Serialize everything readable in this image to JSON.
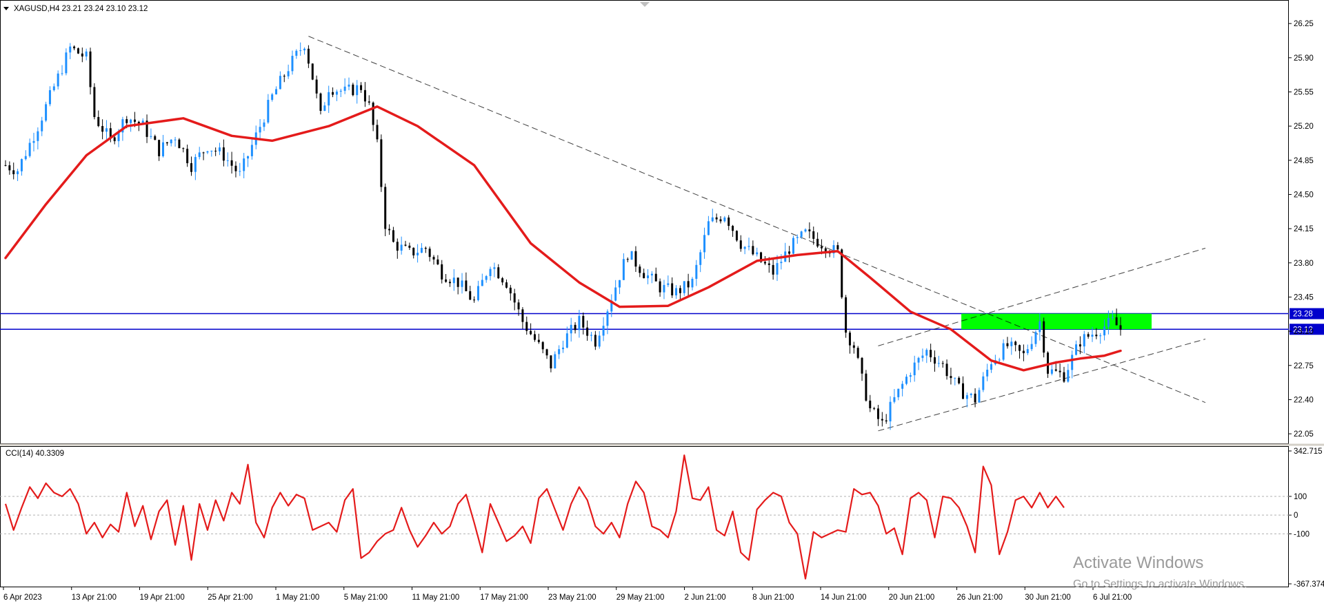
{
  "header": {
    "symbol_line": "XAGUSD,H4  23.21 23.24 23.10 23.12"
  },
  "indicator": {
    "label": "CCI(14) 40.3309"
  },
  "watermark": {
    "line1": "Activate Windows",
    "line2": "Go to Settings to activate Windows."
  },
  "colors": {
    "background": "#ffffff",
    "bull_candle": "#1e90ff",
    "bear_candle": "#000000",
    "moving_average": "#e41b1b",
    "cci_line": "#e41b1b",
    "level_lines": "#0000cc",
    "level_badge": "#0000cc",
    "zone": "#00ff00",
    "trendlines": "#000000",
    "axis_text": "#000000",
    "watermark": "#9a9a9a"
  },
  "chart_data": [
    {
      "type": "candlestick",
      "symbol": "XAGUSD",
      "timeframe": "H4",
      "ohlc_last": {
        "open": 23.21,
        "high": 23.24,
        "low": 23.1,
        "close": 23.12
      },
      "ylim": [
        21.98,
        26.35
      ],
      "y_ticks": [
        26.25,
        25.9,
        25.55,
        25.2,
        24.85,
        24.5,
        24.15,
        23.8,
        23.45,
        23.1,
        22.75,
        22.4,
        22.05
      ],
      "x_tick_labels": [
        "6 Apr 2023",
        "13 Apr 21:00",
        "19 Apr 21:00",
        "25 Apr 21:00",
        "1 May 21:00",
        "5 May 21:00",
        "11 May 21:00",
        "17 May 21:00",
        "23 May 21:00",
        "29 May 21:00",
        "2 Jun 21:00",
        "8 Jun 21:00",
        "14 Jun 21:00",
        "20 Jun 21:00",
        "26 Jun 21:00",
        "30 Jun 21:00",
        "6 Jul 21:00"
      ],
      "price_path": [
        [
          0,
          24.8
        ],
        [
          3,
          24.75
        ],
        [
          8,
          25.2
        ],
        [
          12,
          25.6
        ],
        [
          16,
          26.0
        ],
        [
          20,
          25.9
        ],
        [
          22,
          25.3
        ],
        [
          26,
          25.05
        ],
        [
          30,
          25.3
        ],
        [
          34,
          25.2
        ],
        [
          38,
          24.95
        ],
        [
          42,
          25.1
        ],
        [
          46,
          24.8
        ],
        [
          50,
          25.0
        ],
        [
          54,
          24.9
        ],
        [
          58,
          24.7
        ],
        [
          62,
          25.1
        ],
        [
          66,
          25.5
        ],
        [
          70,
          25.8
        ],
        [
          74,
          26.05
        ],
        [
          76,
          25.7
        ],
        [
          78,
          25.3
        ],
        [
          80,
          25.6
        ],
        [
          84,
          25.55
        ],
        [
          88,
          25.6
        ],
        [
          90,
          25.4
        ],
        [
          92,
          25.0
        ],
        [
          94,
          24.2
        ],
        [
          96,
          24.0
        ],
        [
          100,
          23.9
        ],
        [
          104,
          23.95
        ],
        [
          108,
          23.7
        ],
        [
          112,
          23.6
        ],
        [
          116,
          23.4
        ],
        [
          120,
          23.8
        ],
        [
          124,
          23.6
        ],
        [
          128,
          23.2
        ],
        [
          132,
          22.95
        ],
        [
          135,
          22.75
        ],
        [
          138,
          23.0
        ],
        [
          142,
          23.2
        ],
        [
          146,
          23.0
        ],
        [
          150,
          23.45
        ],
        [
          154,
          23.9
        ],
        [
          158,
          23.7
        ],
        [
          162,
          23.55
        ],
        [
          166,
          23.5
        ],
        [
          170,
          23.6
        ],
        [
          174,
          24.2
        ],
        [
          178,
          24.3
        ],
        [
          182,
          24.0
        ],
        [
          186,
          23.85
        ],
        [
          190,
          23.7
        ],
        [
          194,
          23.95
        ],
        [
          198,
          24.1
        ],
        [
          202,
          24.0
        ],
        [
          206,
          23.9
        ],
        [
          208,
          23.1
        ],
        [
          210,
          22.95
        ],
        [
          212,
          22.6
        ],
        [
          214,
          22.3
        ],
        [
          217,
          22.15
        ],
        [
          220,
          22.4
        ],
        [
          224,
          22.7
        ],
        [
          228,
          22.9
        ],
        [
          232,
          22.75
        ],
        [
          236,
          22.5
        ],
        [
          240,
          22.4
        ],
        [
          244,
          22.8
        ],
        [
          248,
          22.95
        ],
        [
          252,
          22.85
        ],
        [
          256,
          23.2
        ],
        [
          258,
          22.7
        ],
        [
          262,
          22.65
        ],
        [
          266,
          23.0
        ],
        [
          270,
          23.1
        ],
        [
          274,
          23.2
        ],
        [
          276,
          23.12
        ]
      ],
      "series": [
        {
          "style": "moving-average",
          "points": [
            [
              0,
              23.85
            ],
            [
              10,
              24.4
            ],
            [
              20,
              24.9
            ],
            [
              30,
              25.2
            ],
            [
              44,
              25.28
            ],
            [
              56,
              25.1
            ],
            [
              66,
              25.05
            ],
            [
              80,
              25.2
            ],
            [
              92,
              25.4
            ],
            [
              102,
              25.2
            ],
            [
              116,
              24.8
            ],
            [
              130,
              24.0
            ],
            [
              142,
              23.6
            ],
            [
              152,
              23.35
            ],
            [
              164,
              23.36
            ],
            [
              174,
              23.55
            ],
            [
              186,
              23.82
            ],
            [
              196,
              23.88
            ],
            [
              206,
              23.92
            ],
            [
              214,
              23.65
            ],
            [
              224,
              23.3
            ],
            [
              234,
              23.12
            ],
            [
              244,
              22.8
            ],
            [
              252,
              22.7
            ],
            [
              260,
              22.78
            ],
            [
              266,
              22.82
            ],
            [
              272,
              22.85
            ],
            [
              276,
              22.9
            ]
          ]
        }
      ],
      "horizontal_levels": [
        23.28,
        23.12
      ],
      "zone": {
        "from_bar": 240,
        "to_bar": 276,
        "low": 23.12,
        "high": 23.28
      },
      "trendlines": [
        {
          "from": [
            75,
            26.12
          ],
          "to": [
            297,
            22.37
          ]
        },
        {
          "from": [
            216,
            22.08
          ],
          "to": [
            297,
            23.02
          ]
        },
        {
          "from": [
            216,
            22.95
          ],
          "to": [
            297,
            23.95
          ]
        }
      ]
    },
    {
      "type": "line",
      "name": "CCI(14)",
      "last_value": 40.3309,
      "ylim": [
        -367.374,
        342.715
      ],
      "y_ticks": [
        342.715,
        100,
        0,
        -100,
        -367.374
      ],
      "levels": [
        100,
        -100
      ],
      "points": [
        [
          0,
          60
        ],
        [
          2,
          -80
        ],
        [
          4,
          40
        ],
        [
          6,
          150
        ],
        [
          8,
          90
        ],
        [
          10,
          170
        ],
        [
          12,
          120
        ],
        [
          14,
          100
        ],
        [
          16,
          140
        ],
        [
          18,
          60
        ],
        [
          20,
          -100
        ],
        [
          22,
          -40
        ],
        [
          24,
          -120
        ],
        [
          26,
          -50
        ],
        [
          28,
          -90
        ],
        [
          30,
          120
        ],
        [
          32,
          -60
        ],
        [
          34,
          50
        ],
        [
          36,
          -130
        ],
        [
          38,
          20
        ],
        [
          40,
          80
        ],
        [
          42,
          -160
        ],
        [
          44,
          50
        ],
        [
          46,
          -240
        ],
        [
          48,
          60
        ],
        [
          50,
          -80
        ],
        [
          52,
          80
        ],
        [
          54,
          -30
        ],
        [
          56,
          120
        ],
        [
          58,
          60
        ],
        [
          60,
          270
        ],
        [
          62,
          -40
        ],
        [
          64,
          -120
        ],
        [
          66,
          40
        ],
        [
          68,
          120
        ],
        [
          70,
          50
        ],
        [
          72,
          110
        ],
        [
          74,
          90
        ],
        [
          76,
          -80
        ],
        [
          78,
          -60
        ],
        [
          80,
          -40
        ],
        [
          82,
          -90
        ],
        [
          84,
          80
        ],
        [
          86,
          140
        ],
        [
          88,
          -230
        ],
        [
          90,
          -200
        ],
        [
          92,
          -140
        ],
        [
          94,
          -100
        ],
        [
          96,
          -80
        ],
        [
          98,
          40
        ],
        [
          100,
          -80
        ],
        [
          102,
          -170
        ],
        [
          104,
          -110
        ],
        [
          106,
          -40
        ],
        [
          108,
          -100
        ],
        [
          110,
          -60
        ],
        [
          112,
          60
        ],
        [
          114,
          110
        ],
        [
          116,
          -40
        ],
        [
          118,
          -200
        ],
        [
          120,
          60
        ],
        [
          122,
          -40
        ],
        [
          124,
          -140
        ],
        [
          126,
          -110
        ],
        [
          128,
          -60
        ],
        [
          130,
          -150
        ],
        [
          132,
          90
        ],
        [
          134,
          140
        ],
        [
          136,
          30
        ],
        [
          138,
          -80
        ],
        [
          140,
          60
        ],
        [
          142,
          150
        ],
        [
          144,
          80
        ],
        [
          146,
          -60
        ],
        [
          148,
          -100
        ],
        [
          150,
          -40
        ],
        [
          152,
          -120
        ],
        [
          154,
          60
        ],
        [
          156,
          180
        ],
        [
          158,
          120
        ],
        [
          160,
          -60
        ],
        [
          162,
          -80
        ],
        [
          164,
          -120
        ],
        [
          166,
          20
        ],
        [
          168,
          320
        ],
        [
          170,
          90
        ],
        [
          172,
          80
        ],
        [
          174,
          150
        ],
        [
          176,
          -80
        ],
        [
          178,
          -110
        ],
        [
          180,
          20
        ],
        [
          182,
          -200
        ],
        [
          184,
          -240
        ],
        [
          186,
          30
        ],
        [
          188,
          80
        ],
        [
          190,
          120
        ],
        [
          192,
          100
        ],
        [
          194,
          -40
        ],
        [
          196,
          -100
        ],
        [
          198,
          -340
        ],
        [
          200,
          -90
        ],
        [
          202,
          -120
        ],
        [
          204,
          -100
        ],
        [
          206,
          -80
        ],
        [
          208,
          -90
        ],
        [
          210,
          140
        ],
        [
          212,
          110
        ],
        [
          214,
          120
        ],
        [
          216,
          50
        ],
        [
          218,
          -100
        ],
        [
          220,
          -70
        ],
        [
          222,
          -210
        ],
        [
          224,
          90
        ],
        [
          226,
          120
        ],
        [
          228,
          80
        ],
        [
          230,
          -120
        ],
        [
          232,
          100
        ],
        [
          234,
          90
        ],
        [
          236,
          40
        ],
        [
          238,
          -60
        ],
        [
          240,
          -200
        ],
        [
          242,
          260
        ],
        [
          244,
          160
        ],
        [
          246,
          -210
        ],
        [
          248,
          -90
        ],
        [
          250,
          80
        ],
        [
          252,
          100
        ],
        [
          254,
          40
        ],
        [
          256,
          120
        ],
        [
          258,
          40
        ],
        [
          260,
          100
        ],
        [
          262,
          40
        ]
      ]
    }
  ]
}
